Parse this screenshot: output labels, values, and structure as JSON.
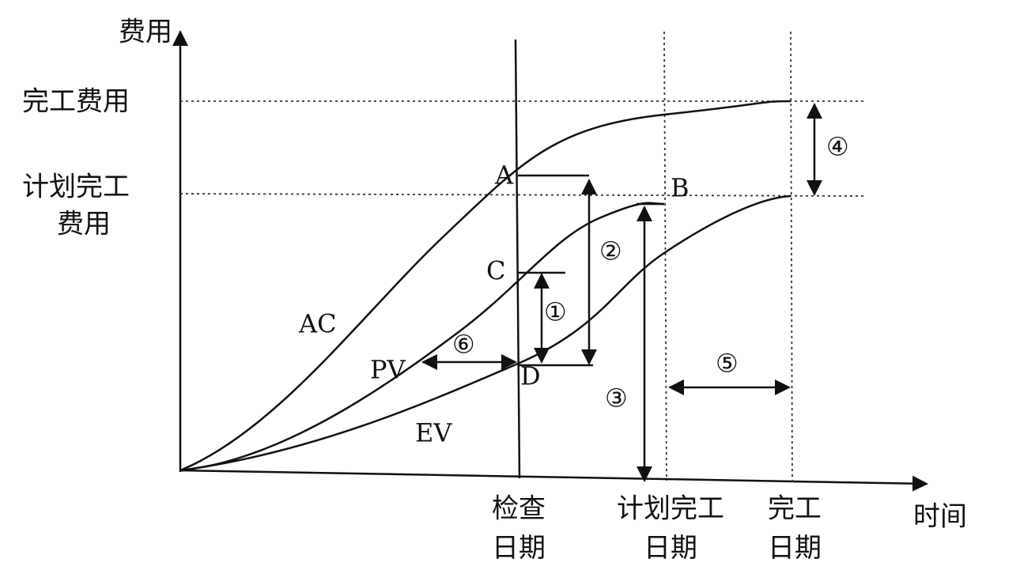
{
  "axes": {
    "y_label": "费用",
    "x_label": "时间"
  },
  "y_levels": [
    {
      "lines": [
        "完工费用"
      ]
    },
    {
      "lines": [
        "计划完工",
        "费用"
      ]
    }
  ],
  "x_marks": [
    {
      "lines": [
        "检查",
        "日期"
      ]
    },
    {
      "lines": [
        "计划完工",
        "日期"
      ]
    },
    {
      "lines": [
        "完工",
        "日期"
      ]
    }
  ],
  "curves": [
    "AC",
    "PV",
    "EV"
  ],
  "points": [
    "A",
    "B",
    "C",
    "D"
  ],
  "markers": [
    "①",
    "②",
    "③",
    "④",
    "⑤",
    "⑥"
  ]
}
